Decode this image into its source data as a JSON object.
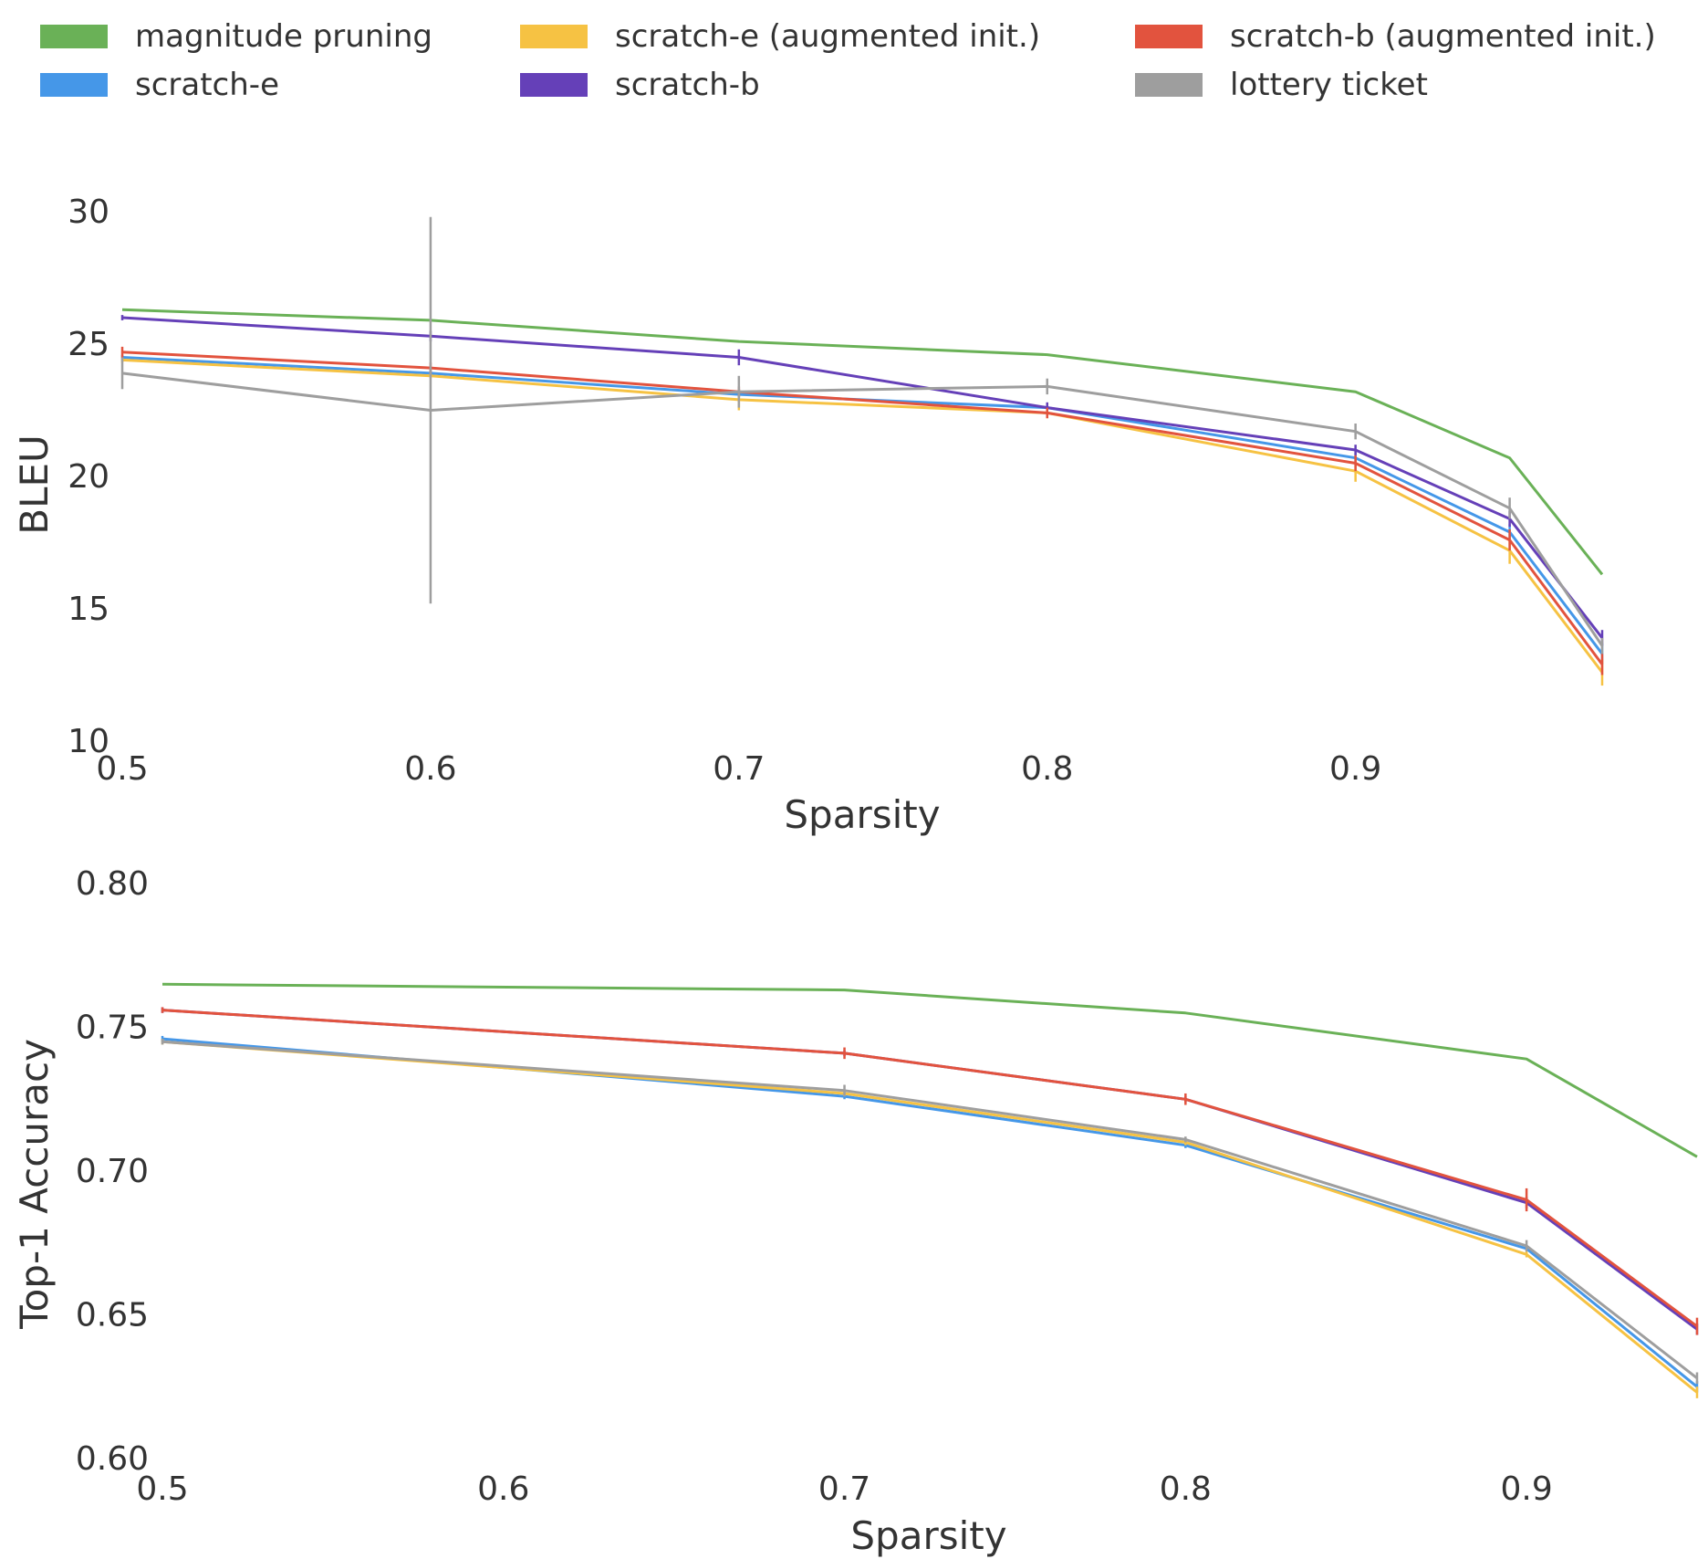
{
  "legend": {
    "items": [
      {
        "label": "magnitude pruning",
        "color": "#6ab157"
      },
      {
        "label": "scratch-e",
        "color": "#4597e8"
      },
      {
        "label": "scratch-e (augmented init.)",
        "color": "#f6c243"
      },
      {
        "label": "scratch-b",
        "color": "#6540b8"
      },
      {
        "label": "scratch-b (augmented init.)",
        "color": "#e2533e"
      },
      {
        "label": "lottery ticket",
        "color": "#9e9e9e"
      }
    ]
  },
  "chart_data": [
    {
      "type": "line",
      "title": "",
      "xlabel": "Sparsity",
      "ylabel": "BLEU",
      "xlim": [
        0.5,
        0.98
      ],
      "ylim": [
        10,
        30
      ],
      "xticks": [
        "0.5",
        "0.6",
        "0.7",
        "0.8",
        "0.9"
      ],
      "yticks": [
        "10",
        "15",
        "20",
        "25",
        "30"
      ],
      "grid": false,
      "x": [
        0.5,
        0.6,
        0.7,
        0.8,
        0.9,
        0.95,
        0.98
      ],
      "series": [
        {
          "name": "magnitude pruning",
          "color": "#6ab157",
          "values": [
            26.3,
            25.9,
            25.1,
            24.6,
            23.2,
            20.7,
            16.3
          ],
          "err": [
            0,
            0,
            0,
            0,
            0,
            0,
            0
          ]
        },
        {
          "name": "scratch-e",
          "color": "#4597e8",
          "values": [
            24.5,
            23.9,
            23.1,
            22.6,
            20.7,
            17.9,
            13.3
          ],
          "err": [
            0.1,
            0.1,
            0.2,
            0.1,
            0.2,
            0.3,
            0.4
          ]
        },
        {
          "name": "scratch-e (augmented init.)",
          "color": "#f6c243",
          "values": [
            24.4,
            23.8,
            22.9,
            22.4,
            20.2,
            17.2,
            12.6
          ],
          "err": [
            0.1,
            0.1,
            0.4,
            0.2,
            0.4,
            0.5,
            0.5
          ]
        },
        {
          "name": "scratch-b",
          "color": "#6540b8",
          "values": [
            26.0,
            25.3,
            24.5,
            22.6,
            21.0,
            18.4,
            13.9
          ],
          "err": [
            0.1,
            0.2,
            0.3,
            0.2,
            0.2,
            0.3,
            0.3
          ]
        },
        {
          "name": "scratch-b (augmented init.)",
          "color": "#e2533e",
          "values": [
            24.7,
            24.1,
            23.2,
            22.4,
            20.5,
            17.6,
            12.9
          ],
          "err": [
            0.2,
            0.2,
            0.2,
            0.2,
            0.3,
            0.4,
            0.4
          ]
        },
        {
          "name": "lottery ticket",
          "color": "#9e9e9e",
          "values": [
            23.9,
            22.5,
            23.2,
            23.4,
            21.7,
            18.8,
            13.6
          ],
          "err": [
            0.6,
            7.3,
            0.6,
            0.3,
            0.3,
            0.4,
            0.3
          ]
        }
      ]
    },
    {
      "type": "line",
      "title": "",
      "xlabel": "Sparsity",
      "ylabel": "Top-1 Accuracy",
      "xlim": [
        0.5,
        0.95
      ],
      "ylim": [
        0.6,
        0.8
      ],
      "xticks": [
        "0.5",
        "0.6",
        "0.7",
        "0.8",
        "0.9"
      ],
      "yticks": [
        "0.60",
        "0.65",
        "0.70",
        "0.75",
        "0.80"
      ],
      "grid": false,
      "x": [
        0.5,
        0.7,
        0.8,
        0.9,
        0.95
      ],
      "series": [
        {
          "name": "magnitude pruning",
          "color": "#6ab157",
          "values": [
            0.765,
            0.763,
            0.755,
            0.739,
            0.705
          ],
          "err": [
            0,
            0,
            0,
            0,
            0
          ]
        },
        {
          "name": "scratch-e",
          "color": "#4597e8",
          "values": [
            0.746,
            0.726,
            0.709,
            0.673,
            0.625
          ],
          "err": [
            0.001,
            0.001,
            0.001,
            0.001,
            0.002
          ]
        },
        {
          "name": "scratch-e (augmented init.)",
          "color": "#f6c243",
          "values": [
            0.745,
            0.727,
            0.71,
            0.671,
            0.623
          ],
          "err": [
            0.001,
            0.001,
            0.001,
            0.001,
            0.002
          ]
        },
        {
          "name": "scratch-b",
          "color": "#6540b8",
          "values": [
            0.756,
            0.741,
            0.725,
            0.689,
            0.645
          ],
          "err": [
            0.001,
            0.001,
            0.001,
            0.002,
            0.002
          ]
        },
        {
          "name": "scratch-b (augmented init.)",
          "color": "#e2533e",
          "values": [
            0.756,
            0.741,
            0.725,
            0.69,
            0.646
          ],
          "err": [
            0.001,
            0.002,
            0.002,
            0.004,
            0.003
          ]
        },
        {
          "name": "lottery ticket",
          "color": "#9e9e9e",
          "values": [
            0.745,
            0.728,
            0.711,
            0.674,
            0.628
          ],
          "err": [
            0.001,
            0.002,
            0.001,
            0.002,
            0.002
          ]
        }
      ]
    }
  ]
}
